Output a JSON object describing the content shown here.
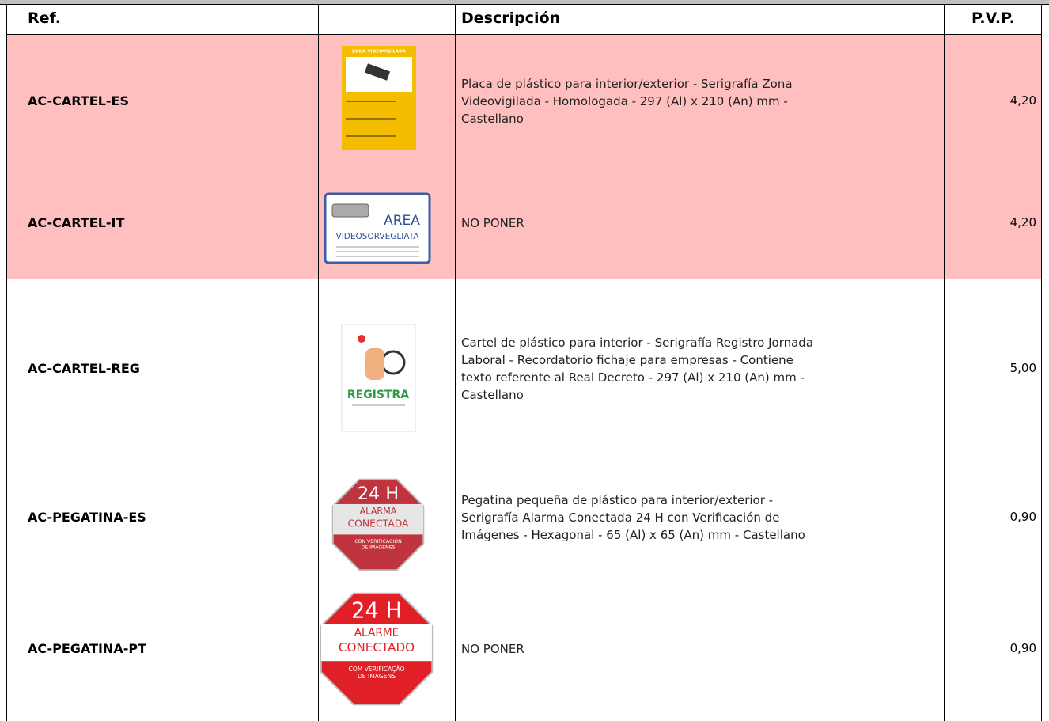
{
  "table": {
    "header": [
      "Ref.",
      "Descripción",
      "P.V.P."
    ],
    "rows": [
      {
        "ref": "AC-CARTEL-ES",
        "image_text": [
          "ZONA VIDEOVIGILADA"
        ],
        "description": [
          "Placa de plástico para interior/exterior - Serigrafía Zona",
          "Videovigilada - Homologada - 297 (Al) x 210 (An) mm -",
          "Castellano"
        ],
        "price": "4,20",
        "highlight": true
      },
      {
        "ref": "AC-CARTEL-IT",
        "image_text": [
          "AREA",
          "VIDEOSORVEGLIATA"
        ],
        "description": [
          "NO PONER"
        ],
        "price": "4,20",
        "highlight": true
      },
      {
        "ref": "AC-CARTEL-REG",
        "image_text": [
          "REGISTRA"
        ],
        "description": [
          "Cartel de plástico para interior - Serigrafía Registro Jornada",
          "Laboral - Recordatorio fichaje para empresas - Contiene",
          "texto referente al Real Decreto - 297 (Al) x 210 (An) mm -",
          "Castellano"
        ],
        "price": "5,00",
        "highlight": false
      },
      {
        "ref": "AC-PEGATINA-ES",
        "image_text": [
          "24 H",
          "ALARMA",
          "CONECTADA",
          "CON VERIFICACIÓN",
          "DE IMÁGENES"
        ],
        "description": [
          "Pegatina pequeña de plástico para interior/exterior -",
          "Serigrafía Alarma Conectada 24 H con Verificación de",
          "Imágenes - Hexagonal - 65 (Al) x 65 (An) mm - Castellano"
        ],
        "price": "0,90",
        "highlight": false
      },
      {
        "ref": "AC-PEGATINA-PT",
        "image_text": [
          "24 H",
          "ALARME",
          "CONECTADO",
          "COM VERIFICAÇÃO",
          "DE IMAGENS"
        ],
        "description": [
          "NO PONER"
        ],
        "price": "0,90",
        "highlight": false
      }
    ]
  }
}
